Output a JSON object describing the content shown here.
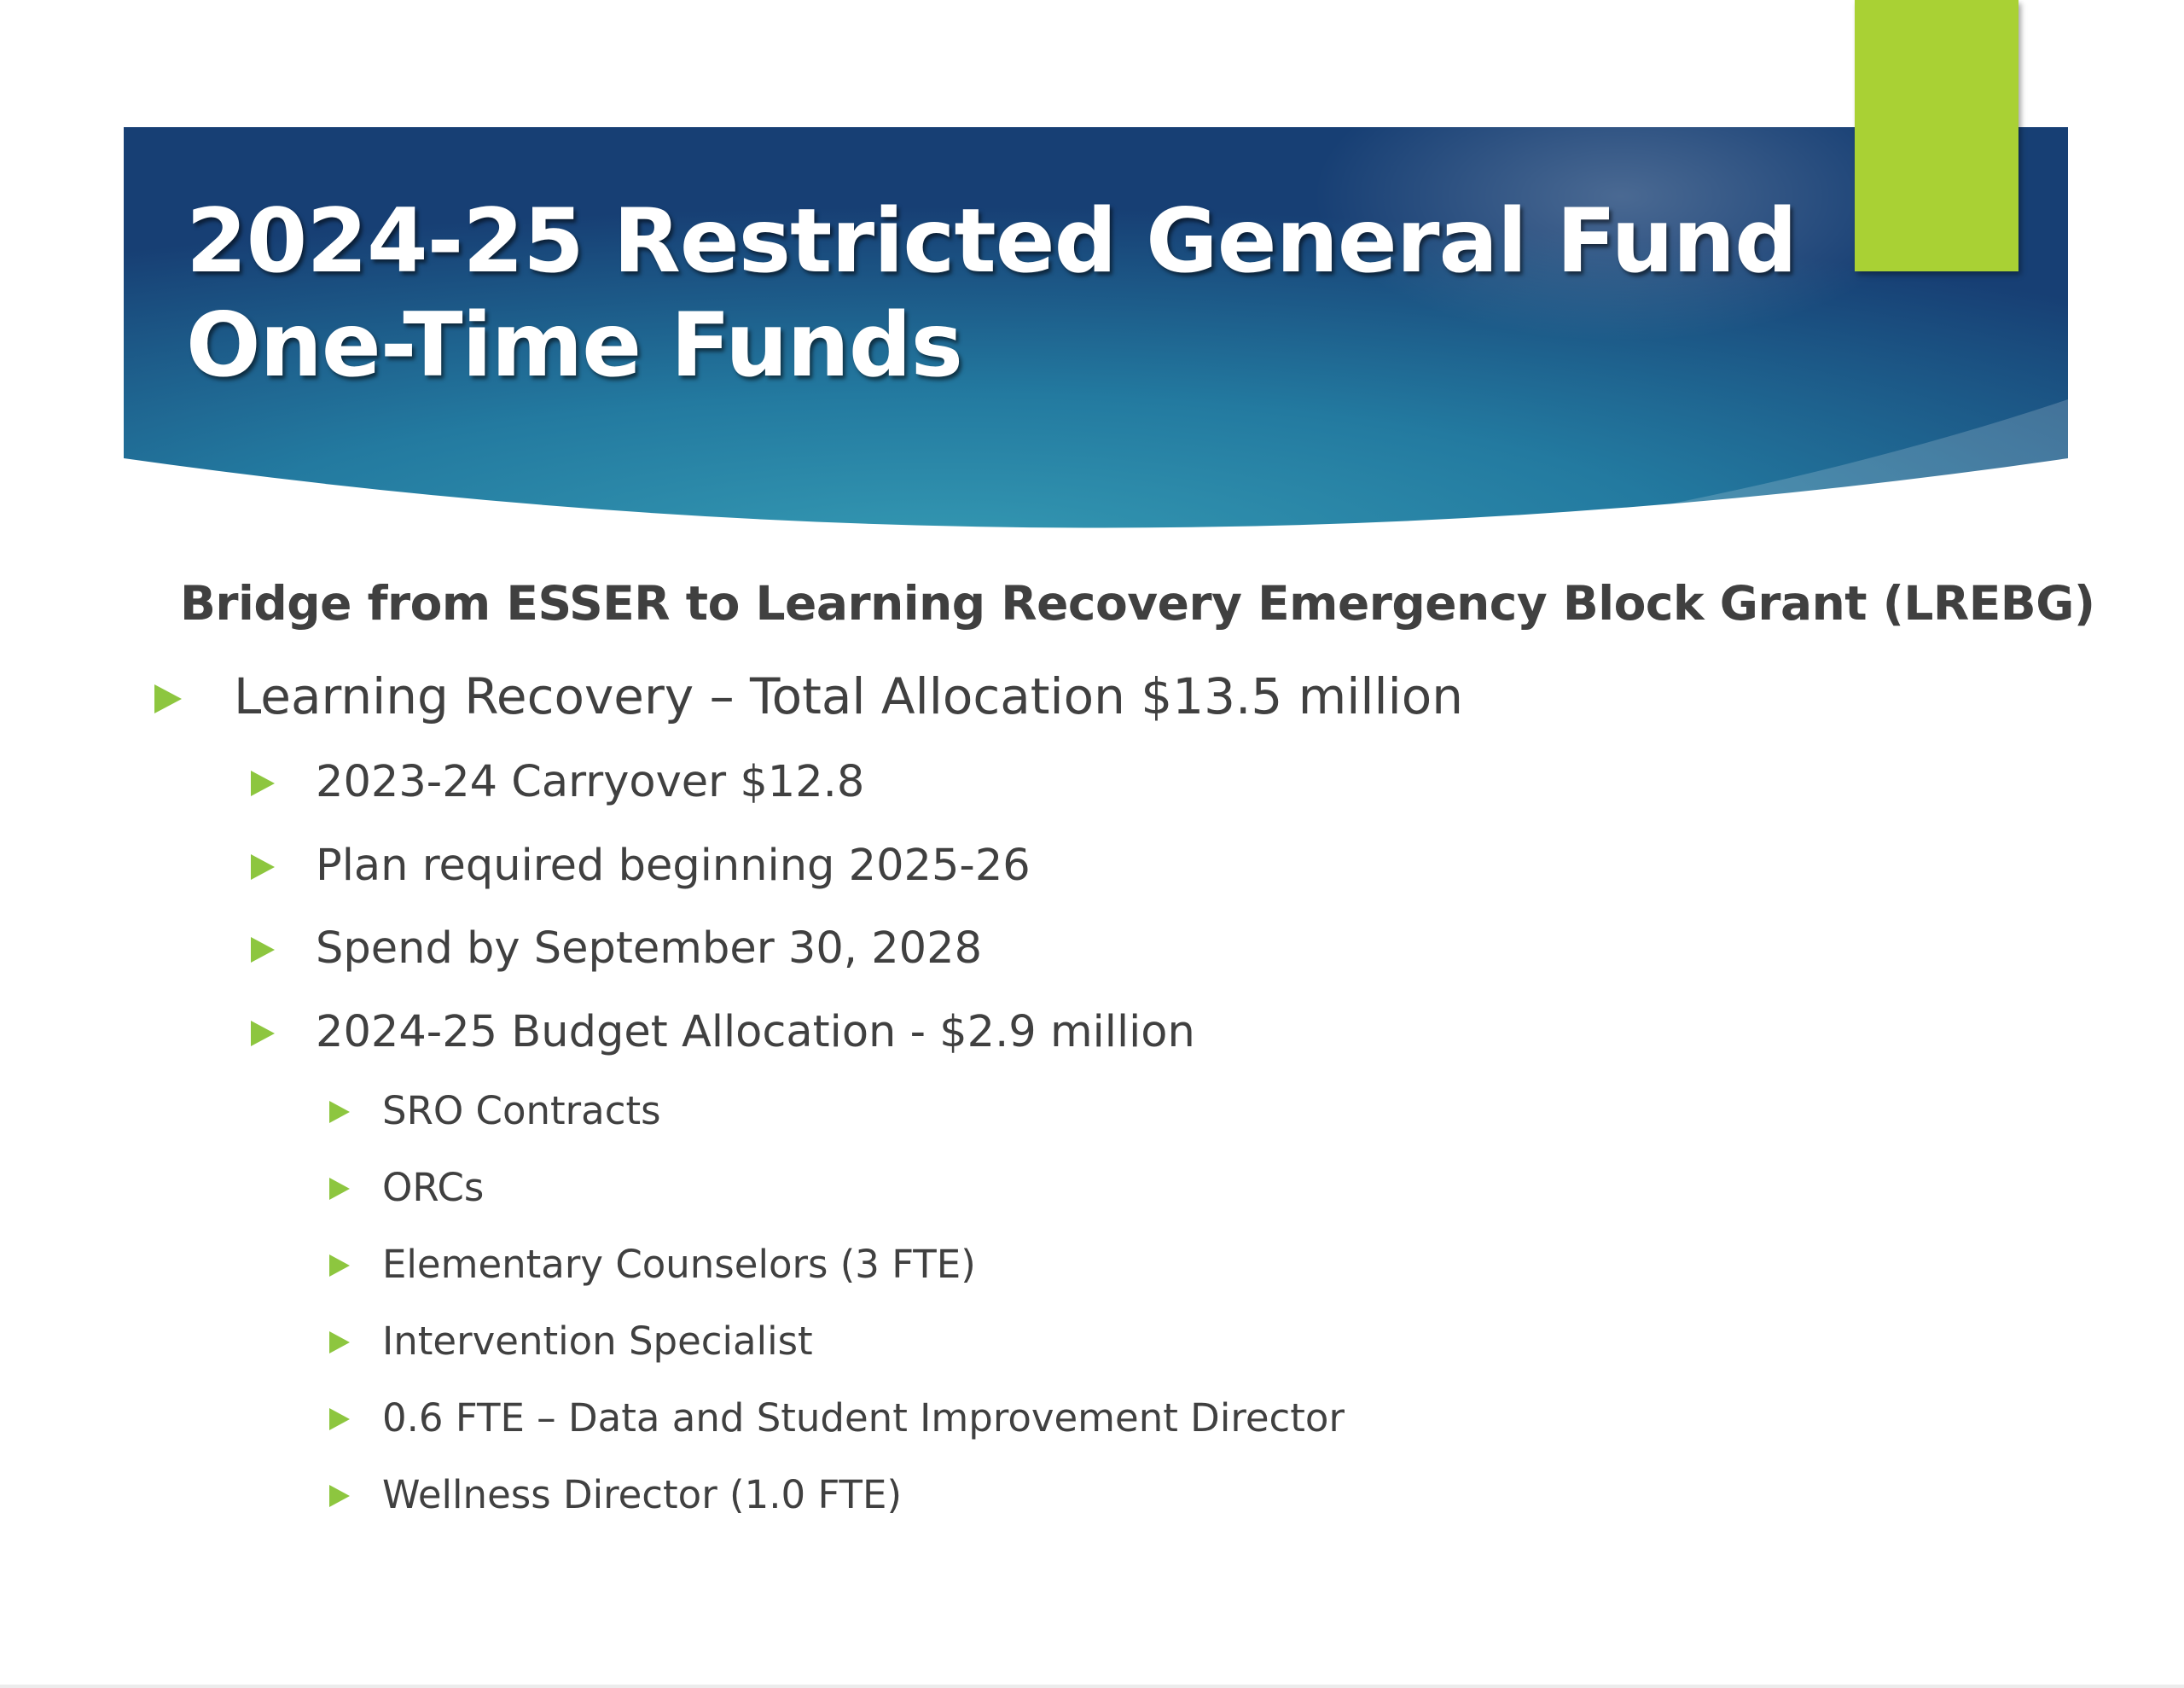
{
  "slide": {
    "title_line1": "2024-25 Restricted General Fund",
    "title_line2": "One-Time Funds",
    "subheading": "Bridge from ESSER to Learning Recovery Emergency Block Grant (LREBG)",
    "accent_color": "#a9d134",
    "bullet_color": "#8dc63f",
    "banner_colors": [
      "#1b4f7e",
      "#2e8aa8"
    ]
  },
  "bullets": {
    "level1": "Learning Recovery – Total Allocation $13.5 million",
    "level2": [
      "2023-24 Carryover $12.8",
      "Plan required beginning 2025-26",
      "Spend by September 30, 2028",
      "2024-25 Budget Allocation - $2.9 million"
    ],
    "level3": [
      "SRO Contracts",
      "ORCs",
      "Elementary Counselors (3 FTE)",
      "Intervention Specialist",
      "0.6 FTE – Data and Student Improvement Director",
      "Wellness Director (1.0 FTE)"
    ]
  }
}
